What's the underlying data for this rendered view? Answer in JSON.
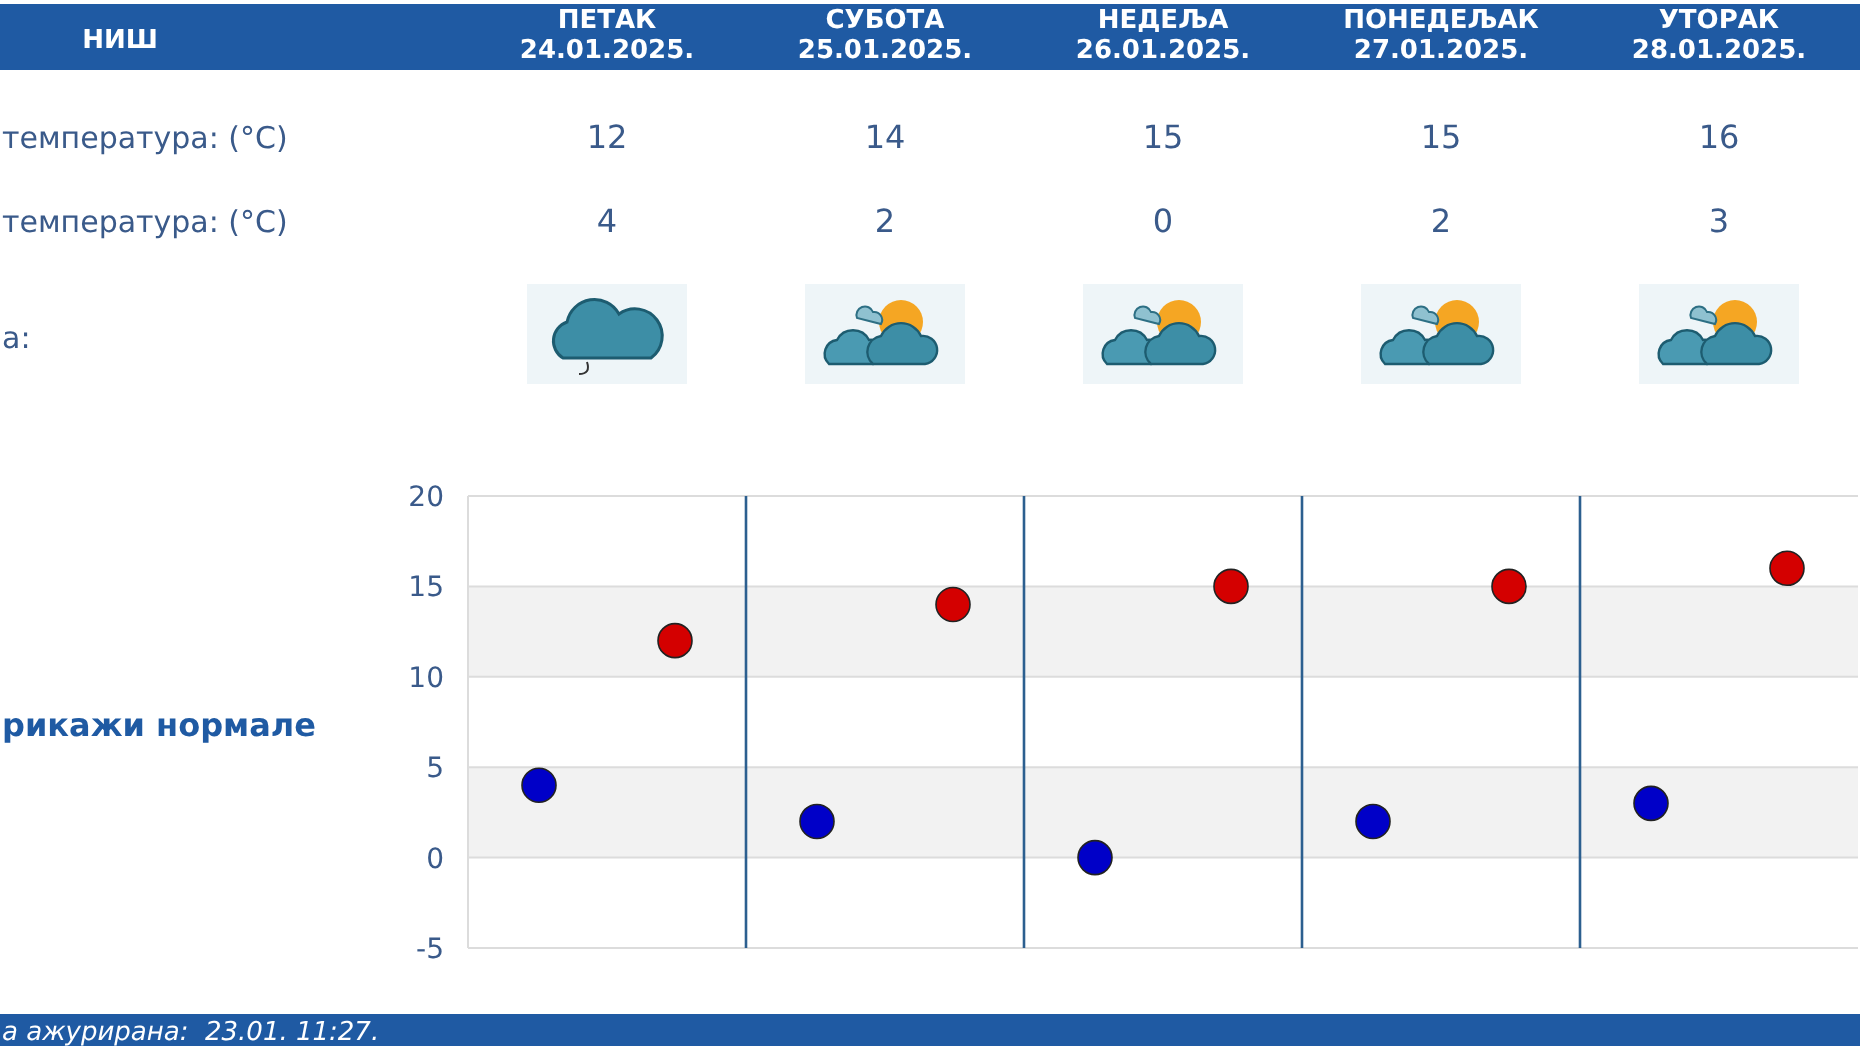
{
  "chart_data": {
    "type": "scatter",
    "title": "НИШ",
    "categories": [
      null,
      null,
      null,
      null,
      null
    ],
    "series": [
      {
        "color": "#d40000",
        "values": [
          12,
          14,
          15,
          15,
          16
        ]
      },
      {
        "color": "#0000c8",
        "values": [
          4,
          2,
          0,
          2,
          3
        ]
      }
    ],
    "ylim": [
      -5,
      20
    ],
    "yticks": [
      -5,
      0,
      5,
      10,
      15,
      20
    ],
    "grid": true,
    "marker": "circle",
    "data_labels": true,
    "annotations": [
      "температура: (°C)",
      "температура: (°C)",
      "а:",
      "рикажи нормале",
      "а ажурирана:  23.01. 11:27.",
      "ПЕТАК 24.01.2025.",
      "СУБОТА 25.01.2025.",
      "НЕДЕЉА 26.01.2025.",
      "ПОНЕДЕЉАК 27.01.2025.",
      "УТОРАК 28.01.2025."
    ]
  }
}
